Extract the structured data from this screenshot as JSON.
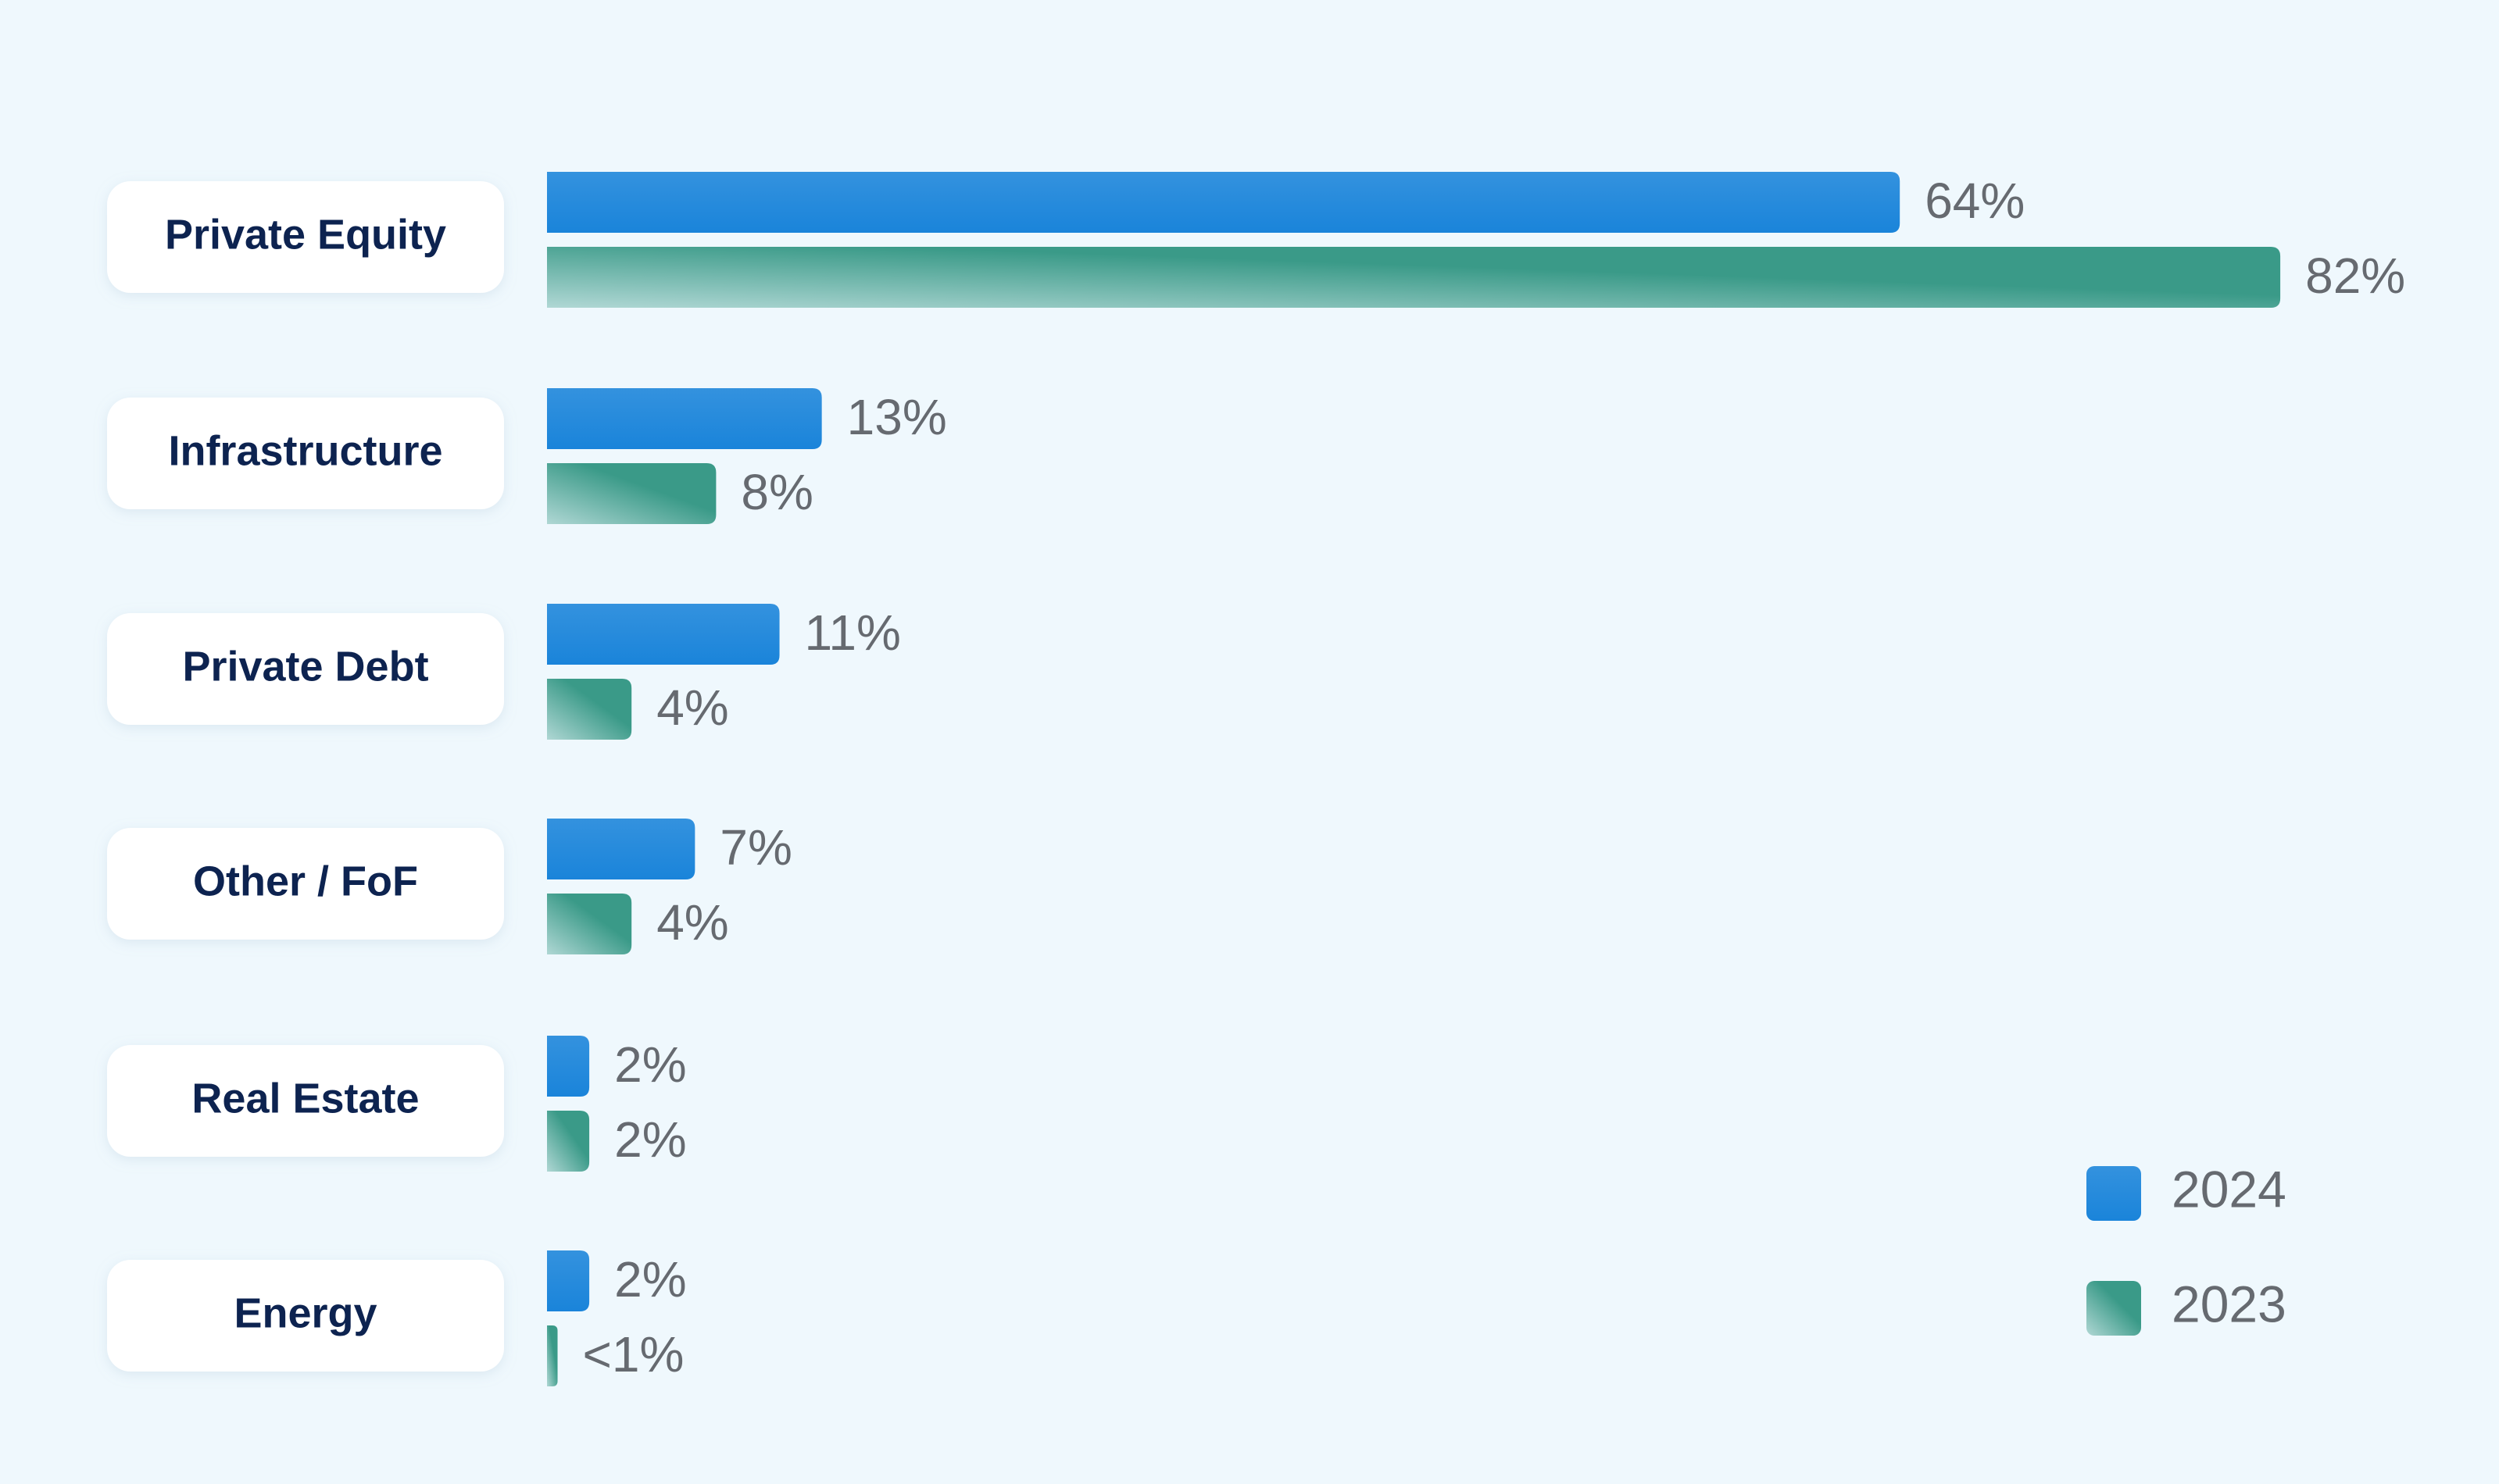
{
  "chart_data": {
    "type": "bar",
    "orientation": "horizontal",
    "categories": [
      "Private Equity",
      "Infrastructure",
      "Private Debt",
      "Other / FoF",
      "Real Estate",
      "Energy"
    ],
    "series": [
      {
        "name": "2024",
        "color": "#1a84da",
        "values": [
          64,
          13,
          11,
          7,
          2,
          2
        ],
        "value_labels": [
          "64%",
          "13%",
          "11%",
          "7%",
          "2%",
          "2%"
        ]
      },
      {
        "name": "2023",
        "color": "#3a9a88",
        "values": [
          82,
          8,
          4,
          4,
          2,
          0.5
        ],
        "value_labels": [
          "82%",
          "8%",
          "4%",
          "4%",
          "2%",
          "<1%"
        ]
      }
    ],
    "xlim": [
      0,
      100
    ],
    "legend": "bottom-right"
  }
}
